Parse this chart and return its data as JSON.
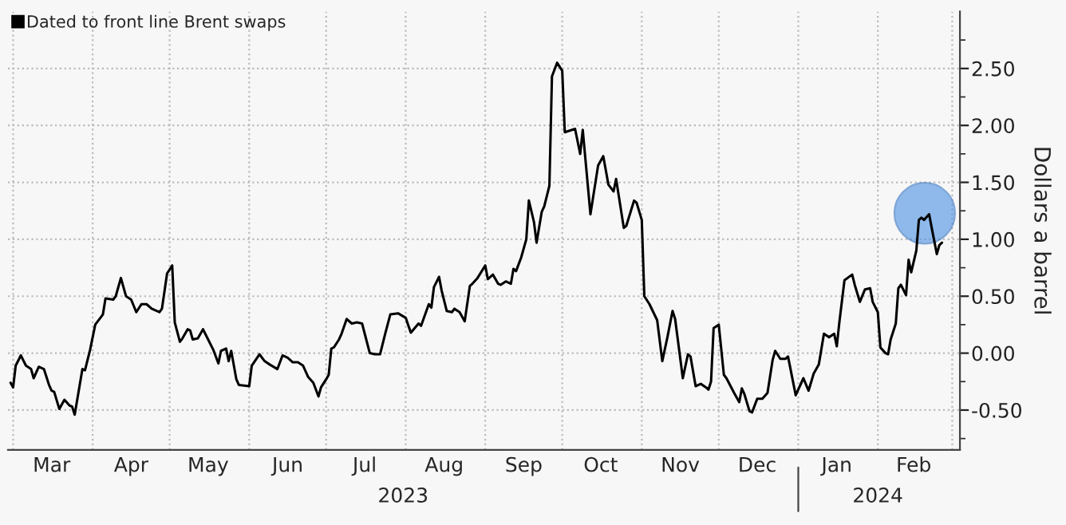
{
  "chart_data": {
    "type": "line",
    "ylabel": "Dollars a barrel",
    "series": [
      {
        "name": "Dated to front line Brent swaps",
        "color": "#000000",
        "x": [
          "2023-02-28",
          "2023-03-01",
          "2023-03-02",
          "2023-03-04",
          "2023-03-06",
          "2023-03-08",
          "2023-03-09",
          "2023-03-11",
          "2023-03-13",
          "2023-03-15",
          "2023-03-16",
          "2023-03-17",
          "2023-03-19",
          "2023-03-21",
          "2023-03-23",
          "2023-03-24",
          "2023-03-25",
          "2023-03-28",
          "2023-03-29",
          "2023-03-31",
          "2023-04-02",
          "2023-04-05",
          "2023-04-06",
          "2023-04-09",
          "2023-04-10",
          "2023-04-12",
          "2023-04-14",
          "2023-04-16",
          "2023-04-18",
          "2023-04-20",
          "2023-04-22",
          "2023-04-24",
          "2023-04-27",
          "2023-04-28",
          "2023-04-30",
          "2023-05-02",
          "2023-05-03",
          "2023-05-05",
          "2023-05-06",
          "2023-05-08",
          "2023-05-09",
          "2023-05-10",
          "2023-05-12",
          "2023-05-14",
          "2023-05-16",
          "2023-05-18",
          "2023-05-20",
          "2023-05-21",
          "2023-05-23",
          "2023-05-24",
          "2023-05-25",
          "2023-05-27",
          "2023-05-28",
          "2023-06-01",
          "2023-06-02",
          "2023-06-05",
          "2023-06-07",
          "2023-06-09",
          "2023-06-12",
          "2023-06-14",
          "2023-06-16",
          "2023-06-18",
          "2023-06-20",
          "2023-06-22",
          "2023-06-24",
          "2023-06-26",
          "2023-06-28",
          "2023-06-29",
          "2023-07-01",
          "2023-07-02",
          "2023-07-03",
          "2023-07-04",
          "2023-07-06",
          "2023-07-07",
          "2023-07-09",
          "2023-07-11",
          "2023-07-13",
          "2023-07-15",
          "2023-07-18",
          "2023-07-20",
          "2023-07-22",
          "2023-07-24",
          "2023-07-26",
          "2023-07-29",
          "2023-08-01",
          "2023-08-03",
          "2023-08-06",
          "2023-08-07",
          "2023-08-10",
          "2023-08-11",
          "2023-08-12",
          "2023-08-14",
          "2023-08-15",
          "2023-08-17",
          "2023-08-19",
          "2023-08-20",
          "2023-08-22",
          "2023-08-24",
          "2023-08-26",
          "2023-08-27",
          "2023-08-29",
          "2023-09-01",
          "2023-09-02",
          "2023-09-04",
          "2023-09-06",
          "2023-09-07",
          "2023-09-09",
          "2023-09-11",
          "2023-09-12",
          "2023-09-13",
          "2023-09-15",
          "2023-09-17",
          "2023-09-18",
          "2023-09-20",
          "2023-09-21",
          "2023-09-23",
          "2023-09-24",
          "2023-09-26",
          "2023-09-27",
          "2023-09-29",
          "2023-10-01",
          "2023-10-02",
          "2023-10-06",
          "2023-10-08",
          "2023-10-09",
          "2023-10-12",
          "2023-10-15",
          "2023-10-17",
          "2023-10-19",
          "2023-10-21",
          "2023-10-22",
          "2023-10-25",
          "2023-10-26",
          "2023-10-29",
          "2023-10-30",
          "2023-11-01",
          "2023-11-02",
          "2023-11-04",
          "2023-11-07",
          "2023-11-09",
          "2023-11-11",
          "2023-11-13",
          "2023-11-14",
          "2023-11-17",
          "2023-11-19",
          "2023-11-20",
          "2023-11-22",
          "2023-11-24",
          "2023-11-26",
          "2023-11-27",
          "2023-11-28",
          "2023-11-29",
          "2023-12-01",
          "2023-12-03",
          "2023-12-04",
          "2023-12-07",
          "2023-12-09",
          "2023-12-10",
          "2023-12-11",
          "2023-12-13",
          "2023-12-14",
          "2023-12-16",
          "2023-12-18",
          "2023-12-20",
          "2023-12-22",
          "2023-12-23",
          "2023-12-25",
          "2023-12-27",
          "2023-12-28",
          "2023-12-31",
          "2024-01-03",
          "2024-01-05",
          "2024-01-07",
          "2024-01-09",
          "2024-01-11",
          "2024-01-13",
          "2024-01-15",
          "2024-01-16",
          "2024-01-17",
          "2024-01-19",
          "2024-01-22",
          "2024-01-23",
          "2024-01-25",
          "2024-01-27",
          "2024-01-29",
          "2024-01-30",
          "2024-02-01",
          "2024-02-02",
          "2024-02-04",
          "2024-02-05",
          "2024-02-06",
          "2024-02-08",
          "2024-02-09",
          "2024-02-10",
          "2024-02-12",
          "2024-02-13",
          "2024-02-14",
          "2024-02-16",
          "2024-02-17",
          "2024-02-18",
          "2024-02-19",
          "2024-02-21",
          "2024-02-22",
          "2024-02-24",
          "2024-02-25",
          "2024-02-26"
        ],
        "values": [
          -0.26,
          -0.3,
          -0.11,
          -0.02,
          -0.11,
          -0.14,
          -0.22,
          -0.12,
          -0.14,
          -0.28,
          -0.33,
          -0.34,
          -0.49,
          -0.41,
          -0.46,
          -0.47,
          -0.54,
          -0.14,
          -0.15,
          0.03,
          0.25,
          0.34,
          0.48,
          0.47,
          0.5,
          0.66,
          0.5,
          0.47,
          0.36,
          0.43,
          0.43,
          0.39,
          0.36,
          0.39,
          0.7,
          0.77,
          0.27,
          0.1,
          0.13,
          0.21,
          0.2,
          0.12,
          0.13,
          0.21,
          0.12,
          0.03,
          -0.09,
          0.02,
          0.04,
          -0.07,
          0.02,
          -0.23,
          -0.28,
          -0.29,
          -0.11,
          -0.01,
          -0.07,
          -0.1,
          -0.14,
          -0.02,
          -0.04,
          -0.08,
          -0.08,
          -0.11,
          -0.21,
          -0.26,
          -0.38,
          -0.3,
          -0.23,
          -0.19,
          0.04,
          0.05,
          0.12,
          0.17,
          0.3,
          0.26,
          0.27,
          0.26,
          0.0,
          -0.01,
          -0.01,
          0.17,
          0.34,
          0.35,
          0.31,
          0.18,
          0.26,
          0.24,
          0.43,
          0.4,
          0.58,
          0.67,
          0.55,
          0.37,
          0.36,
          0.39,
          0.36,
          0.28,
          0.59,
          0.61,
          0.66,
          0.77,
          0.65,
          0.69,
          0.61,
          0.6,
          0.63,
          0.61,
          0.74,
          0.72,
          0.84,
          1.0,
          1.34,
          1.15,
          0.97,
          1.24,
          1.29,
          1.47,
          2.43,
          2.55,
          2.48,
          1.94,
          1.97,
          1.75,
          1.96,
          1.22,
          1.65,
          1.73,
          1.48,
          1.42,
          1.53,
          1.1,
          1.12,
          1.34,
          1.32,
          1.17,
          0.5,
          0.43,
          0.29,
          -0.07,
          0.14,
          0.37,
          0.3,
          -0.22,
          -0.01,
          -0.03,
          -0.29,
          -0.27,
          -0.3,
          -0.32,
          -0.25,
          0.22,
          0.25,
          -0.19,
          -0.22,
          -0.35,
          -0.43,
          -0.31,
          -0.36,
          -0.51,
          -0.52,
          -0.4,
          -0.4,
          -0.35,
          -0.06,
          0.02,
          -0.05,
          -0.05,
          -0.03,
          -0.37,
          -0.22,
          -0.33,
          -0.18,
          -0.1,
          0.17,
          0.14,
          0.17,
          0.06,
          0.27,
          0.64,
          0.69,
          0.6,
          0.45,
          0.56,
          0.57,
          0.45,
          0.36,
          0.05,
          0.0,
          -0.01,
          0.12,
          0.26,
          0.57,
          0.6,
          0.51,
          0.82,
          0.71,
          0.9,
          1.17,
          1.19,
          1.17,
          1.22,
          1.1,
          0.87,
          0.95,
          0.97
        ]
      }
    ],
    "xlim": [
      "2023-02-27",
      "2024-03-04"
    ],
    "xticks": [
      {
        "value": "2023-03-01",
        "label": null
      },
      {
        "value": "2023-03-16",
        "label": "Mar"
      },
      {
        "value": "2023-04-01",
        "label": null
      },
      {
        "value": "2023-04-16",
        "label": "Apr"
      },
      {
        "value": "2023-05-01",
        "label": null
      },
      {
        "value": "2023-05-16",
        "label": "May"
      },
      {
        "value": "2023-06-01",
        "label": null
      },
      {
        "value": "2023-06-16",
        "label": "Jun"
      },
      {
        "value": "2023-07-01",
        "label": null
      },
      {
        "value": "2023-07-16",
        "label": "Jul"
      },
      {
        "value": "2023-08-01",
        "label": null
      },
      {
        "value": "2023-08-16",
        "label": "Aug"
      },
      {
        "value": "2023-09-01",
        "label": null
      },
      {
        "value": "2023-09-16",
        "label": "Sep"
      },
      {
        "value": "2023-10-01",
        "label": null
      },
      {
        "value": "2023-10-16",
        "label": "Oct"
      },
      {
        "value": "2023-11-01",
        "label": null
      },
      {
        "value": "2023-11-16",
        "label": "Nov"
      },
      {
        "value": "2023-12-01",
        "label": null
      },
      {
        "value": "2023-12-16",
        "label": "Dec"
      },
      {
        "value": "2024-01-01",
        "label": null
      },
      {
        "value": "2024-01-16",
        "label": "Jan"
      },
      {
        "value": "2024-02-01",
        "label": null
      },
      {
        "value": "2024-02-15",
        "label": "Feb"
      },
      {
        "value": "2024-03-01",
        "label": null
      }
    ],
    "x2lim": [
      "2023-02-27",
      "2024-03-04"
    ],
    "x2ticks": [
      {
        "value": "2023-07-31",
        "label": "2023"
      },
      {
        "value": "2024-01-01",
        "label": null
      },
      {
        "value": "2024-02-01",
        "label": "2024"
      }
    ],
    "ylim": [
      -0.85,
      3.0
    ],
    "yticks": [
      {
        "value": -0.75,
        "label": null
      },
      {
        "value": -0.5,
        "label": "-0.50"
      },
      {
        "value": -0.25,
        "label": null
      },
      {
        "value": 0,
        "label": "0.00"
      },
      {
        "value": 0.25,
        "label": null
      },
      {
        "value": 0.5,
        "label": "0.50"
      },
      {
        "value": 0.75,
        "label": null
      },
      {
        "value": 1.0,
        "label": "1.00"
      },
      {
        "value": 1.25,
        "label": null
      },
      {
        "value": 1.5,
        "label": "1.50"
      },
      {
        "value": 1.75,
        "label": null
      },
      {
        "value": 2.0,
        "label": "2.00"
      },
      {
        "value": 2.25,
        "label": null
      },
      {
        "value": 2.5,
        "label": "2.50"
      },
      {
        "value": 2.75,
        "label": null
      }
    ],
    "grid": true,
    "legend": "top left",
    "marker": "none",
    "line_style": "solid"
  }
}
